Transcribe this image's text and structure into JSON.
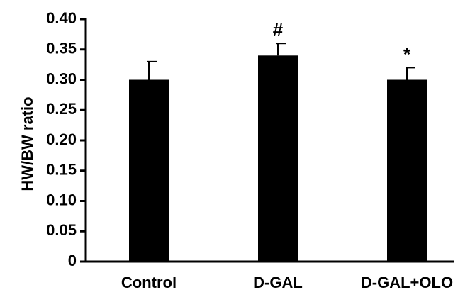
{
  "chart_data": {
    "type": "bar",
    "categories": [
      "Control",
      "D-GAL",
      "D-GAL+OLO"
    ],
    "values": [
      0.3,
      0.34,
      0.3
    ],
    "errors": [
      0.03,
      0.02,
      0.02
    ],
    "annotations": [
      "",
      "#",
      "*"
    ],
    "ylabel": "HW/BW ratio",
    "xlabel": "",
    "ylim": [
      0,
      0.4
    ],
    "yticks": [
      0,
      0.05,
      0.1,
      0.15,
      0.2,
      0.25,
      0.3,
      0.35,
      0.4
    ],
    "ytick_labels": [
      "0",
      "0.05",
      "0.10",
      "0.15",
      "0.20",
      "0.25",
      "0.30",
      "0.35",
      "0.40"
    ],
    "grid": false,
    "bar_color": "#000000"
  }
}
